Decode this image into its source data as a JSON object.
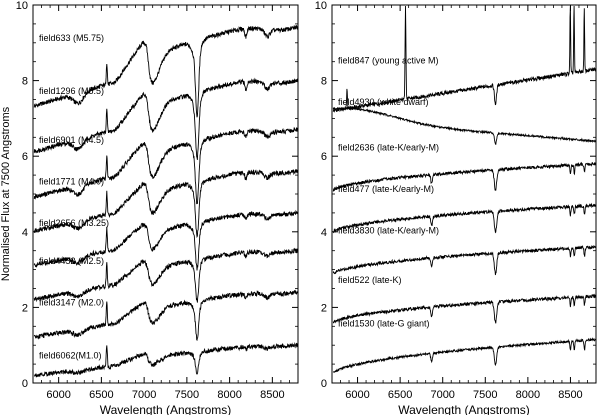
{
  "chart_data": [
    {
      "type": "line",
      "panel": "left",
      "xlabel": "Wavelength (Angstroms)",
      "ylabel": "Normalised Flux at 7500 Angstroms",
      "xlim": [
        5700,
        8800
      ],
      "ylim": [
        0,
        10
      ],
      "xticks": [
        6000,
        6500,
        7000,
        7500,
        8000,
        8500
      ],
      "yticks": [
        0,
        2,
        4,
        6,
        8,
        10
      ],
      "series": [
        {
          "name": "field633 (M5.75)",
          "offset": 9.1,
          "kind": "M",
          "depth": 1.8
        },
        {
          "name": "field1296 (M5.5)",
          "offset": 7.7,
          "kind": "M",
          "depth": 1.6
        },
        {
          "name": "field6901 (M4.5)",
          "offset": 6.4,
          "kind": "M",
          "depth": 1.5
        },
        {
          "name": "field1771 (M4.0)",
          "offset": 5.3,
          "kind": "M",
          "depth": 1.3
        },
        {
          "name": "field2656 (M3.25)",
          "offset": 4.2,
          "kind": "M",
          "depth": 1.1
        },
        {
          "name": "field4452 (M2.5)",
          "offset": 3.2,
          "kind": "M",
          "depth": 1.0
        },
        {
          "name": "field3147 (M2.0)",
          "offset": 2.1,
          "kind": "M",
          "depth": 0.9
        },
        {
          "name": "field6062(M1.0)",
          "offset": 0.7,
          "kind": "M",
          "depth": 0.5
        }
      ]
    },
    {
      "type": "line",
      "panel": "right",
      "xlabel": "Wavelength (Angstroms)",
      "ylabel": "",
      "xlim": [
        5700,
        8800
      ],
      "ylim": [
        0,
        10
      ],
      "xticks": [
        6000,
        6500,
        7000,
        7500,
        8000,
        8500
      ],
      "yticks": [
        0,
        2,
        4,
        6,
        8,
        10
      ],
      "series": [
        {
          "name": "field847 (young active M)",
          "offset": 7.9,
          "kind": "active"
        },
        {
          "name": "field4930 (white dwarf)",
          "offset": 6.8,
          "kind": "wd"
        },
        {
          "name": "field2636 (late-K/early-M)",
          "offset": 5.6,
          "kind": "K"
        },
        {
          "name": "field477 (late-K/early-M)",
          "offset": 4.5,
          "kind": "K"
        },
        {
          "name": "field3830 (late-K/early-M)",
          "offset": 3.4,
          "kind": "K"
        },
        {
          "name": "field522 (late-K)",
          "offset": 2.1,
          "kind": "K"
        },
        {
          "name": "field1530 (late-G giant)",
          "offset": 0.95,
          "kind": "G"
        }
      ]
    }
  ]
}
